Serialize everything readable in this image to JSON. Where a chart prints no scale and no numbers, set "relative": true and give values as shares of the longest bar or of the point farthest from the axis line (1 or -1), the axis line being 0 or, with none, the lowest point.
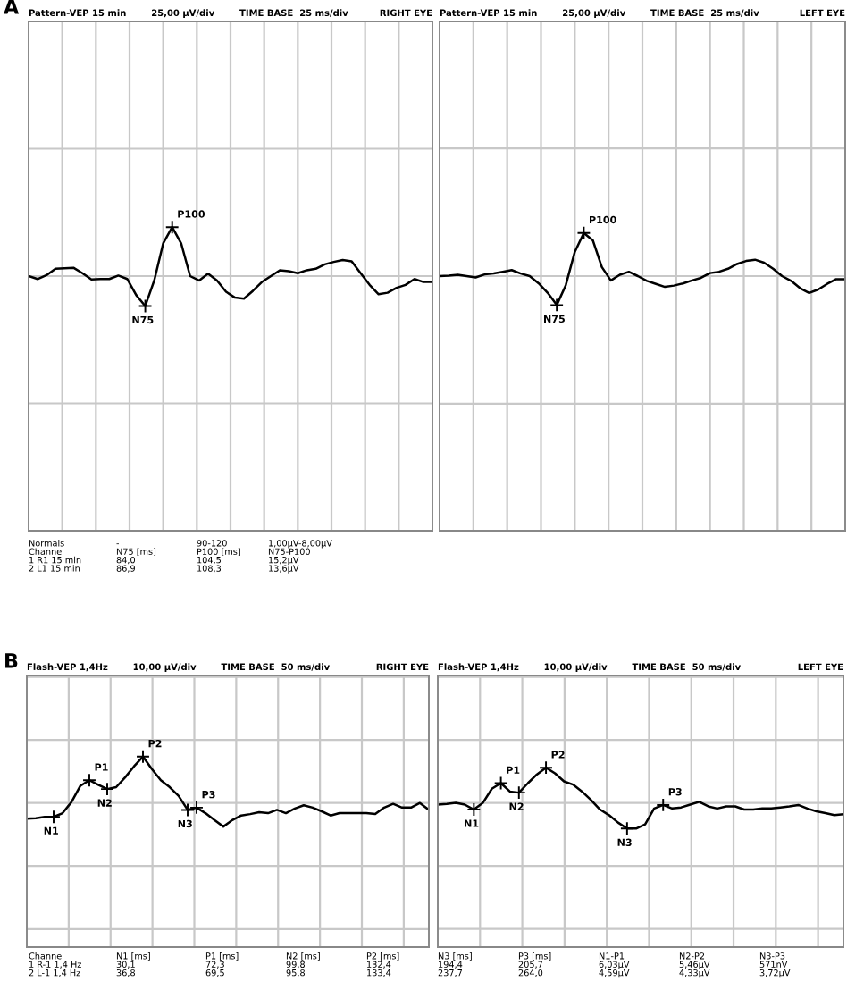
{
  "chart_data": [
    {
      "type": "line",
      "relative": true,
      "grid": true,
      "title": "Pattern-VEP 15 min        25,00 µV/div        TIME BASE  25 ms/div",
      "subtitle": "RIGHT EYE",
      "categories": [
        null,
        null,
        null,
        null,
        null,
        null,
        null,
        null,
        null,
        null,
        null,
        null,
        null,
        null,
        null,
        null,
        null,
        null,
        null,
        null,
        null,
        null,
        null,
        null,
        null,
        null,
        null,
        null,
        null,
        null,
        null,
        null,
        null,
        null,
        null,
        null,
        null,
        null,
        null,
        null,
        null,
        null,
        null,
        null,
        null,
        null
      ],
      "series": [
        {
          "color": "#000000",
          "values": [
            0,
            -0.06,
            0.02,
            0.15,
            0.16,
            0.17,
            0.06,
            -0.07,
            -0.06,
            -0.06,
            0.01,
            -0.06,
            -0.39,
            -0.61,
            -0.09,
            0.67,
            1.0,
            0.67,
            0,
            -0.09,
            0.05,
            -0.09,
            -0.32,
            -0.44,
            -0.46,
            -0.3,
            -0.12,
            0,
            0.12,
            0.1,
            0.06,
            0.12,
            0.15,
            0.24,
            0.29,
            0.33,
            0.3,
            0.06,
            -0.18,
            -0.37,
            -0.34,
            -0.24,
            -0.18,
            -0.06,
            -0.12,
            -0.12
          ]
        }
      ],
      "annotations": [
        "A",
        "Normals\nChannel\n1 R1 15 min\n2 L1 15 min",
        "-\nN75 [ms]\n84,0\n86,9",
        "90-120\nP100 [ms]\n104,5\n108,3",
        "1,00µV-8,00µV\nN75-P100\n15,2µV\n13,6µV",
        "N75",
        "P100"
      ]
    },
    {
      "type": "line",
      "relative": true,
      "grid": true,
      "title": "Pattern-VEP 15 min        25,00 µV/div        TIME BASE  25 ms/div",
      "subtitle": "LEFT EYE",
      "categories": [
        null,
        null,
        null,
        null,
        null,
        null,
        null,
        null,
        null,
        null,
        null,
        null,
        null,
        null,
        null,
        null,
        null,
        null,
        null,
        null,
        null,
        null,
        null,
        null,
        null,
        null,
        null,
        null,
        null,
        null,
        null,
        null,
        null,
        null,
        null,
        null,
        null,
        null,
        null,
        null,
        null,
        null,
        null,
        null,
        null,
        null
      ],
      "series": [
        {
          "color": "#000000",
          "values": [
            0,
            0.01,
            0.03,
            0,
            -0.03,
            0.04,
            0.06,
            0.1,
            0.14,
            0.06,
            0,
            -0.17,
            -0.39,
            -0.67,
            -0.21,
            0.56,
            1.0,
            0.83,
            0.21,
            -0.1,
            0.03,
            0.1,
            0,
            -0.11,
            -0.18,
            -0.25,
            -0.22,
            -0.17,
            -0.1,
            -0.04,
            0.07,
            0.1,
            0.17,
            0.28,
            0.35,
            0.38,
            0.31,
            0.17,
            0,
            -0.11,
            -0.28,
            -0.39,
            -0.31,
            -0.18,
            -0.07,
            -0.07
          ]
        }
      ],
      "annotations": [
        "N75",
        "P100"
      ]
    },
    {
      "type": "line",
      "relative": true,
      "grid": true,
      "title": "Flash-VEP 1,4Hz        10,00 µV/div        TIME BASE  50 ms/div",
      "subtitle": "RIGHT EYE",
      "categories": [
        null,
        null,
        null,
        null,
        null,
        null,
        null,
        null,
        null,
        null,
        null,
        null,
        null,
        null,
        null,
        null,
        null,
        null,
        null,
        null,
        null,
        null,
        null,
        null,
        null,
        null,
        null,
        null,
        null,
        null,
        null,
        null,
        null,
        null,
        null,
        null,
        null,
        null,
        null,
        null,
        null,
        null,
        null,
        null,
        null,
        null
      ],
      "series": [
        {
          "color": "#000000",
          "values": [
            -0.34,
            -0.33,
            -0.3,
            -0.3,
            -0.22,
            0.02,
            0.37,
            0.49,
            0.39,
            0.3,
            0.34,
            0.55,
            0.79,
            1.0,
            0.73,
            0.49,
            0.34,
            0.15,
            -0.15,
            -0.1,
            -0.22,
            -0.37,
            -0.51,
            -0.37,
            -0.27,
            -0.24,
            -0.2,
            -0.22,
            -0.15,
            -0.22,
            -0.12,
            -0.05,
            -0.1,
            -0.18,
            -0.27,
            -0.22,
            -0.22,
            -0.22,
            -0.22,
            -0.24,
            -0.1,
            -0.02,
            -0.1,
            -0.1,
            0,
            -0.15
          ]
        }
      ],
      "annotations": [
        "B",
        "Channel\n1 R-1 1,4 Hz\n2 L-1 1,4 Hz",
        "N1 [ms]\n30,1\n36,8",
        "P1 [ms]\n72,3\n69,5",
        "N2 [ms]\n99,8\n95,8",
        "P2 [ms]\n132,4\n133,4",
        "N1",
        "P1",
        "N2",
        "P2",
        "N3",
        "P3"
      ]
    },
    {
      "type": "line",
      "relative": true,
      "grid": true,
      "title": "Flash-VEP 1,4Hz        10,00 µV/div        TIME BASE  50 ms/div",
      "subtitle": "LEFT EYE",
      "categories": [
        null,
        null,
        null,
        null,
        null,
        null,
        null,
        null,
        null,
        null,
        null,
        null,
        null,
        null,
        null,
        null,
        null,
        null,
        null,
        null,
        null,
        null,
        null,
        null,
        null,
        null,
        null,
        null,
        null,
        null,
        null,
        null,
        null,
        null,
        null,
        null,
        null,
        null,
        null,
        null,
        null,
        null,
        null,
        null,
        null,
        null
      ],
      "series": [
        {
          "color": "#000000",
          "values": [
            -0.05,
            -0.03,
            0,
            -0.05,
            -0.19,
            0,
            0.4,
            0.56,
            0.32,
            0.29,
            0.56,
            0.81,
            1.0,
            0.84,
            0.61,
            0.52,
            0.32,
            0.08,
            -0.19,
            -0.35,
            -0.56,
            -0.73,
            -0.73,
            -0.61,
            -0.16,
            -0.06,
            -0.16,
            -0.13,
            -0.05,
            0.03,
            -0.1,
            -0.16,
            -0.1,
            -0.1,
            -0.19,
            -0.19,
            -0.16,
            -0.16,
            -0.13,
            -0.1,
            -0.06,
            -0.16,
            -0.24,
            -0.29,
            -0.35,
            -0.32
          ]
        }
      ],
      "annotations": [
        "N3 [ms]\n194,4\n237,7",
        "P3 [ms]\n205,7\n264,0",
        "N1-P1\n6,03µV\n4,59µV",
        "N2-P2\n5,46µV\n4,33µV",
        "N3-P3\n571nV\n3,72µV",
        "N1",
        "P1",
        "N2",
        "P2",
        "N3",
        "P3"
      ]
    }
  ]
}
